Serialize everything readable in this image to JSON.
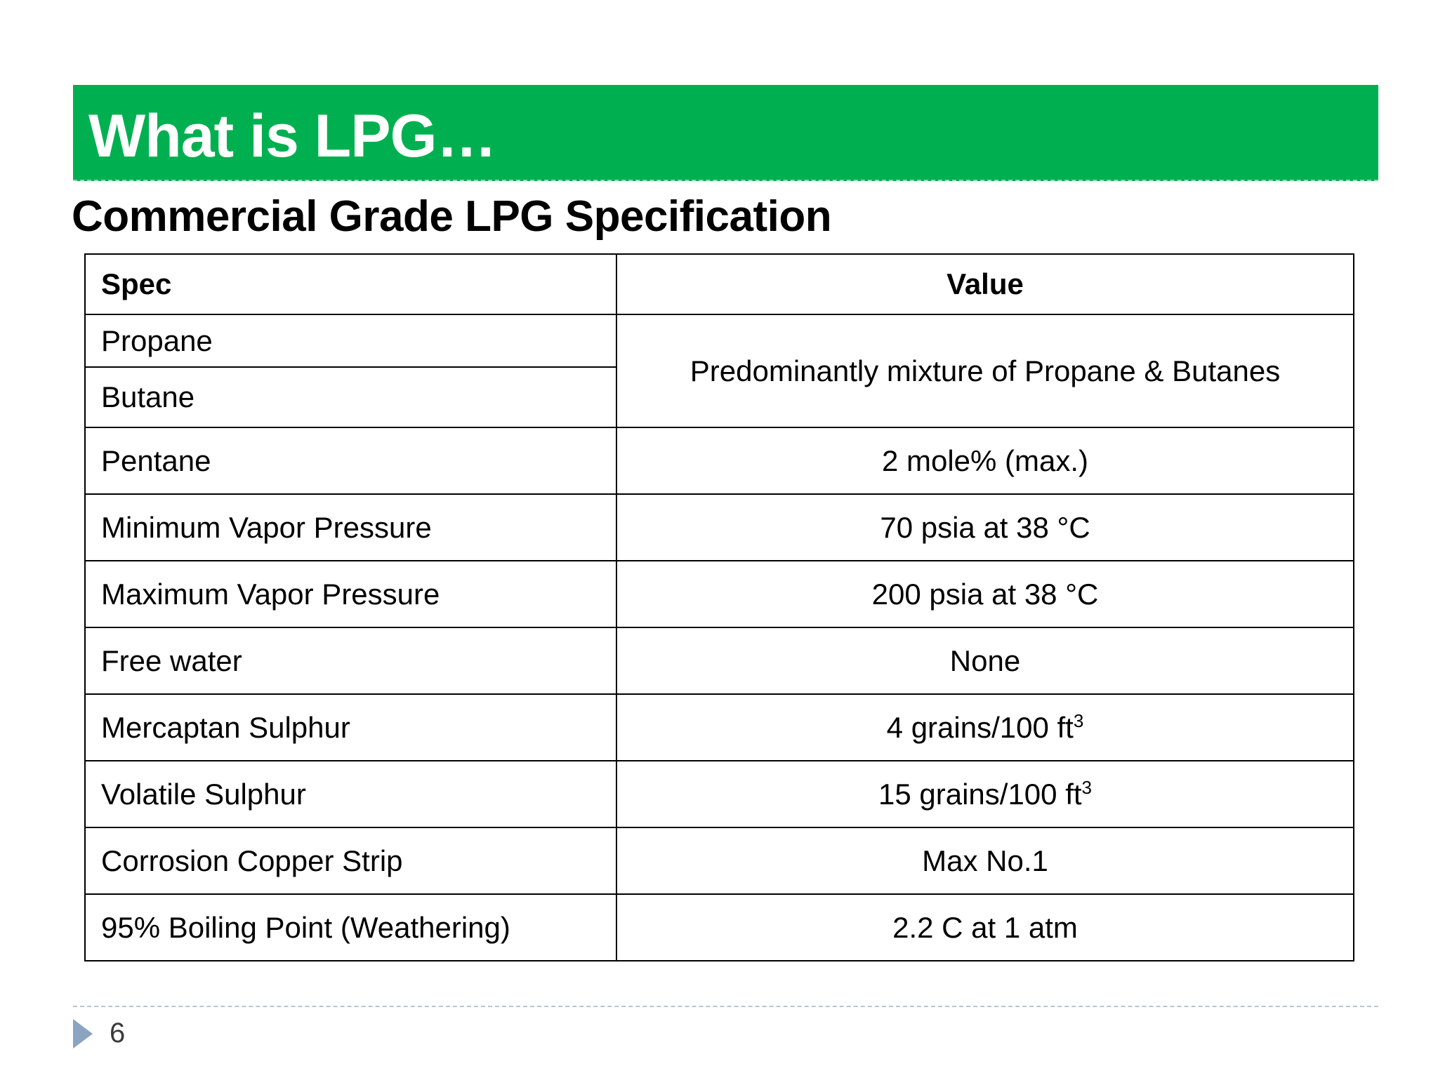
{
  "slide": {
    "title": "What is LPG…",
    "subtitle": "Commercial Grade LPG Specification",
    "page_number": "6",
    "colors": {
      "title_bar": "#00b050",
      "title_text": "#ffffff",
      "footer_arrow": "#8aa4c2"
    }
  },
  "table": {
    "headers": {
      "spec": "Spec",
      "value": "Value"
    },
    "merged_group": {
      "specs": [
        "Propane",
        "Butane"
      ],
      "value": "Predominantly mixture of Propane & Butanes"
    },
    "rows": [
      {
        "spec": "Pentane",
        "value": "2 mole% (max.)",
        "sup": ""
      },
      {
        "spec": "Minimum Vapor Pressure",
        "value": "70 psia at 38 °C",
        "sup": ""
      },
      {
        "spec": "Maximum Vapor Pressure",
        "value": "200 psia at 38 °C",
        "sup": ""
      },
      {
        "spec": "Free water",
        "value": "None",
        "sup": ""
      },
      {
        "spec": "Mercaptan Sulphur",
        "value": "4 grains/100 ft",
        "sup": "3"
      },
      {
        "spec": "Volatile Sulphur",
        "value": "15 grains/100 ft",
        "sup": "3"
      },
      {
        "spec": "Corrosion Copper Strip",
        "value": "Max No.1",
        "sup": ""
      },
      {
        "spec": "95% Boiling Point (Weathering)",
        "value": "2.2 C at 1 atm",
        "sup": ""
      }
    ]
  }
}
